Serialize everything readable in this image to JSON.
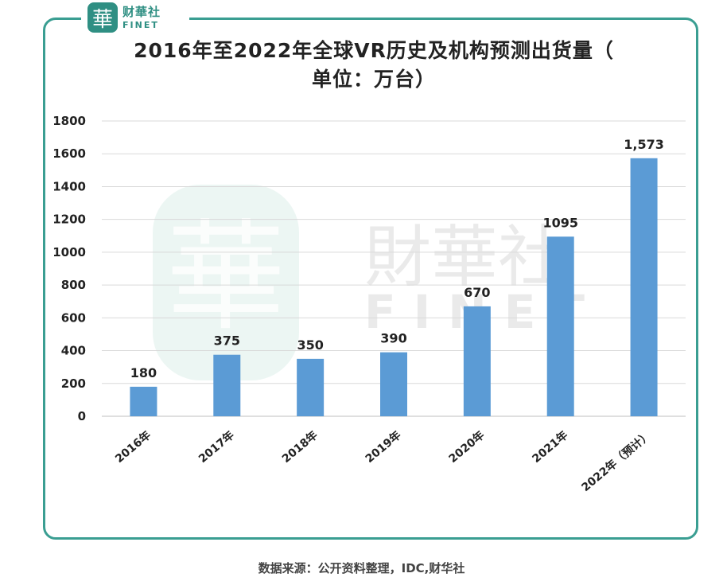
{
  "logo": {
    "cn": "财華社",
    "en": "FINET",
    "seal_char": "華"
  },
  "watermark": {
    "cn": "財華社",
    "en": "FINET",
    "seal_char": "華"
  },
  "title_line1": "2016年至2022年全球VR历史及机构预测出货量（",
  "title_line2": "单位：万台）",
  "source": "数据来源：公开资料整理，IDC,财华社",
  "colors": {
    "bar": "#5b9bd5",
    "frame": "#3a9e92",
    "grid": "#d9d9d9"
  },
  "chart_data": {
    "type": "bar",
    "categories": [
      "2016年",
      "2017年",
      "2018年",
      "2019年",
      "2020年",
      "2021年",
      "2022年（预计）"
    ],
    "values": [
      180,
      375,
      350,
      390,
      670,
      1095,
      1573
    ],
    "data_labels": [
      "180",
      "375",
      "350",
      "390",
      "670",
      "1095",
      "1,573"
    ],
    "y_ticks": [
      "0",
      "200",
      "400",
      "600",
      "800",
      "1000",
      "1200",
      "1400",
      "1600",
      "1800"
    ],
    "ylim": [
      0,
      1800
    ],
    "grid": true,
    "legend": "none"
  }
}
